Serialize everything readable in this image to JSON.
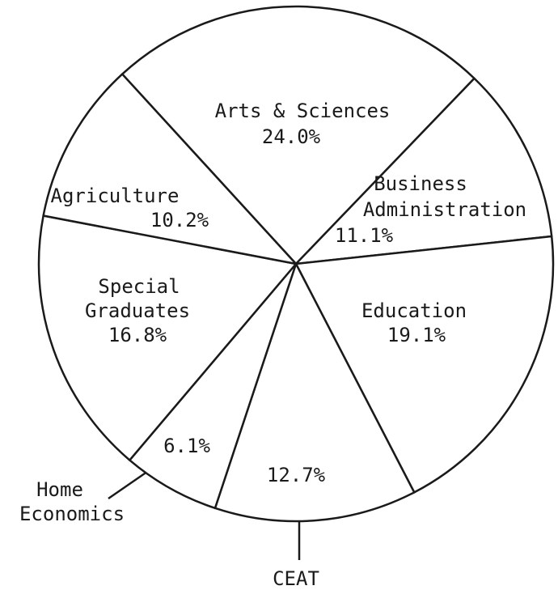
{
  "chart_data": {
    "type": "pie",
    "categories": [
      "Arts & Sciences",
      "Business Administration",
      "Education",
      "CEAT",
      "Home Economics",
      "Special Graduates",
      "Agriculture"
    ],
    "values": [
      24.0,
      11.1,
      19.1,
      12.7,
      6.1,
      16.8,
      10.2
    ],
    "value_labels": [
      "24.0%",
      "11.1%",
      "19.1%",
      "12.7%",
      "6.1%",
      "16.8%",
      "10.2%"
    ],
    "color": "#1a1a1a"
  }
}
